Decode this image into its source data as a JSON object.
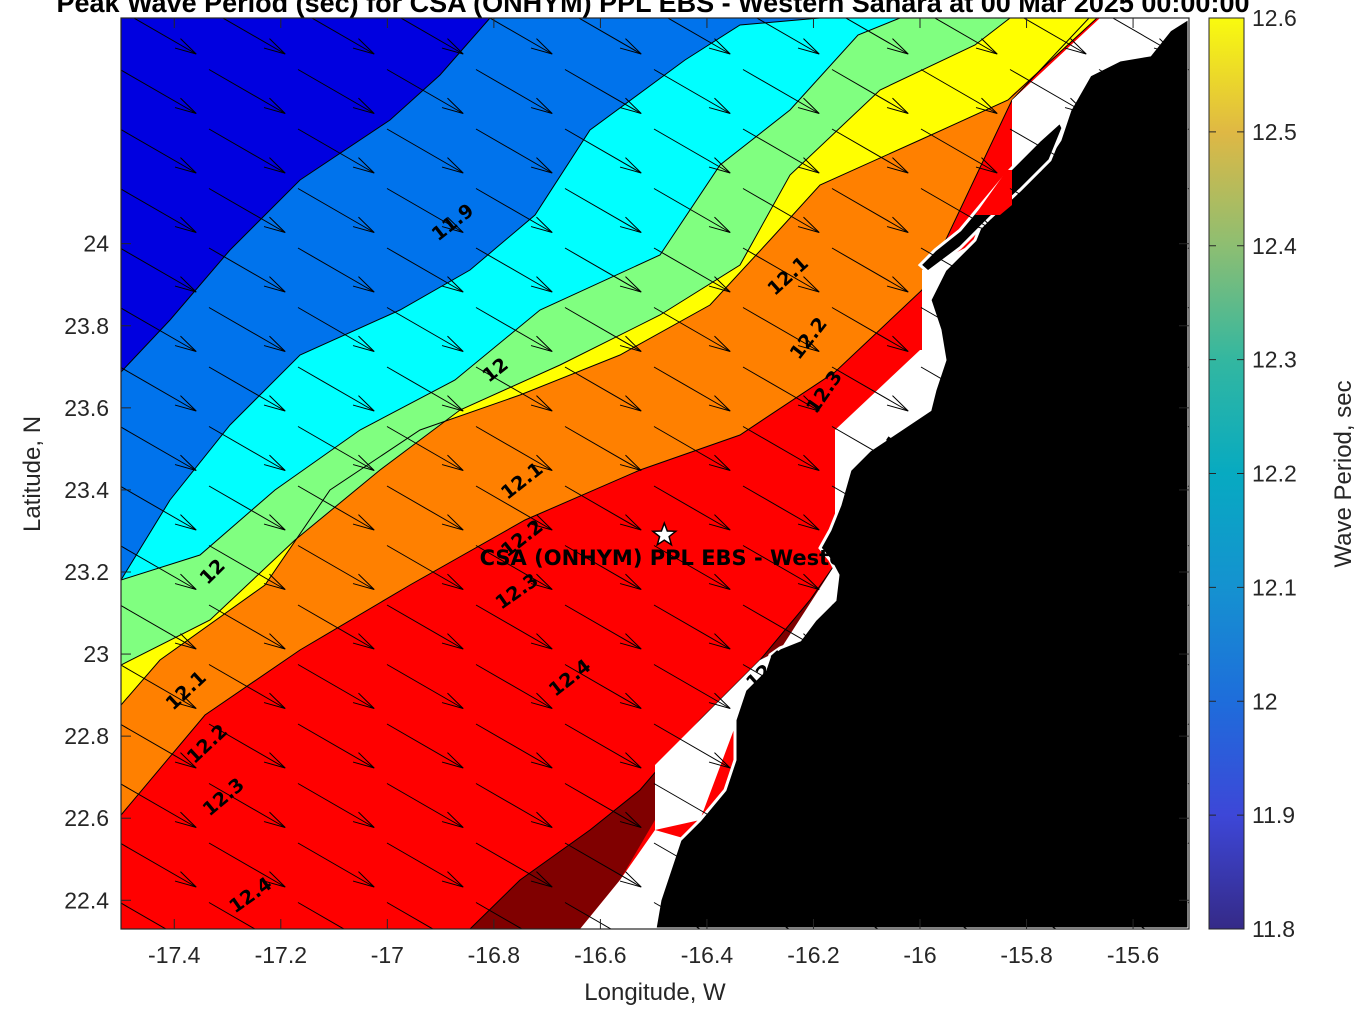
{
  "chart_data": {
    "type": "heatmap",
    "title": "Peak Wave Period (sec) for CSA (ONHYM) PPL EBS - Western Sahara at 00 Mar 2025 00:00:00",
    "xlabel": "Longitude, W",
    "ylabel": "Latitude, N",
    "xlim": [
      -17.5,
      -15.495
    ],
    "ylim": [
      22.33,
      24.55
    ],
    "x_ticks": [
      -17.4,
      -17.2,
      -17.0,
      -16.8,
      -16.6,
      -16.4,
      -16.2,
      -16.0,
      -15.8,
      -15.6
    ],
    "x_tick_labels": [
      "-17.4",
      "-17.2",
      "-17",
      "-16.8",
      "-16.6",
      "-16.4",
      "-16.2",
      "-16",
      "-15.8",
      "-15.6"
    ],
    "y_ticks": [
      22.4,
      22.6,
      22.8,
      23.0,
      23.2,
      23.4,
      23.6,
      23.8,
      24.0
    ],
    "y_tick_labels": [
      "22.4",
      "22.6",
      "22.8",
      "23",
      "23.2",
      "23.4",
      "23.6",
      "23.8",
      "24"
    ],
    "colorbar": {
      "label": "Wave Period, sec",
      "range": [
        11.8,
        12.6
      ],
      "ticks": [
        11.8,
        11.9,
        12.0,
        12.1,
        12.2,
        12.3,
        12.4,
        12.5,
        12.6
      ],
      "tick_labels": [
        "11.8",
        "11.9",
        "12",
        "12.1",
        "12.2",
        "12.3",
        "12.4",
        "12.5",
        "12.6"
      ],
      "colormap": "parula"
    },
    "contour_fill_colors": [
      "#0000e0",
      "#0073ec",
      "#00ffff",
      "#80ff80",
      "#ffff00",
      "#ff8000",
      "#ff0000",
      "#800000"
    ],
    "land_color": "#000000",
    "contour_labels": [
      {
        "text": "11.9",
        "x": -16.87,
        "y": 24.04,
        "angle": -38
      },
      {
        "text": "12",
        "x": -16.79,
        "y": 23.68,
        "angle": -38
      },
      {
        "text": "12",
        "x": -17.32,
        "y": 23.19,
        "angle": -45
      },
      {
        "text": "12.1",
        "x": -16.24,
        "y": 23.91,
        "angle": -42
      },
      {
        "text": "12.1",
        "x": -16.74,
        "y": 23.41,
        "angle": -38
      },
      {
        "text": "12.1",
        "x": -17.37,
        "y": 22.9,
        "angle": -43
      },
      {
        "text": "12.2",
        "x": -16.2,
        "y": 23.76,
        "angle": -52
      },
      {
        "text": "12.2",
        "x": -16.74,
        "y": 23.27,
        "angle": -38
      },
      {
        "text": "12.2",
        "x": -17.33,
        "y": 22.77,
        "angle": -43
      },
      {
        "text": "12.3",
        "x": -16.17,
        "y": 23.63,
        "angle": -55
      },
      {
        "text": "12.3",
        "x": -16.75,
        "y": 23.14,
        "angle": -35
      },
      {
        "text": "12.3",
        "x": -17.3,
        "y": 22.64,
        "angle": -40
      },
      {
        "text": "12.4",
        "x": -16.06,
        "y": 23.47,
        "angle": -55
      },
      {
        "text": "12.4",
        "x": -16.65,
        "y": 22.93,
        "angle": -38
      },
      {
        "text": "12.4",
        "x": -17.25,
        "y": 22.4,
        "angle": -35
      },
      {
        "text": "12.5",
        "x": -16.28,
        "y": 22.95,
        "angle": -42
      }
    ],
    "site": {
      "name": "CSA (ONHYM) PPL EBS - Western Sahara",
      "x": -16.48,
      "y": 23.29
    },
    "wave_direction_deg_from": 300
  }
}
